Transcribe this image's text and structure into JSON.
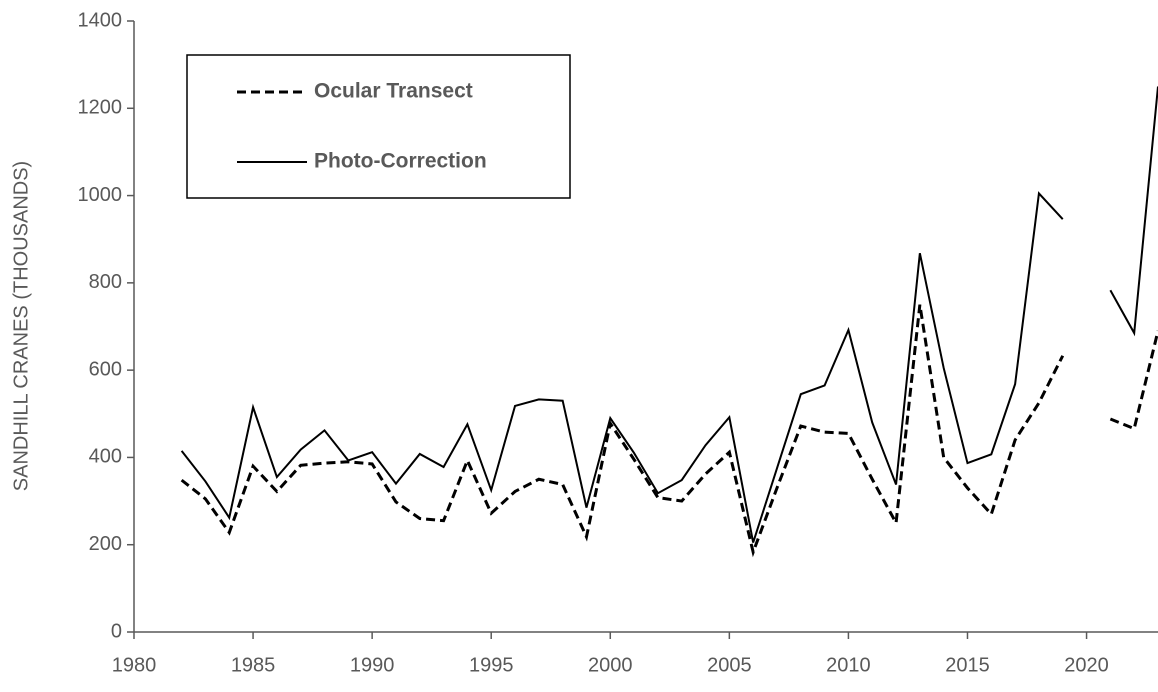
{
  "chart_data": {
    "type": "line",
    "y_label": "SANDHILL CRANES (THOUSANDS)",
    "x": [
      1982,
      1983,
      1984,
      1985,
      1986,
      1987,
      1988,
      1989,
      1990,
      1991,
      1992,
      1993,
      1994,
      1995,
      1996,
      1997,
      1998,
      1999,
      2000,
      2001,
      2002,
      2003,
      2004,
      2005,
      2006,
      2007,
      2008,
      2009,
      2010,
      2011,
      2012,
      2013,
      2014,
      2015,
      2016,
      2017,
      2018,
      2019,
      2020,
      2021,
      2022,
      2023
    ],
    "series": [
      {
        "name": "Ocular Transect",
        "color": "#000000",
        "dash": true,
        "values": [
          348,
          305,
          228,
          380,
          322,
          382,
          387,
          390,
          385,
          298,
          260,
          255,
          393,
          272,
          322,
          350,
          338,
          218,
          478,
          395,
          308,
          300,
          362,
          412,
          183,
          330,
          472,
          458,
          455,
          350,
          250,
          750,
          400,
          330,
          270,
          440,
          525,
          633,
          null,
          488,
          466,
          690
        ]
      },
      {
        "name": "Photo-Correction",
        "color": "#000000",
        "dash": false,
        "values": [
          415,
          345,
          262,
          515,
          355,
          418,
          462,
          393,
          412,
          340,
          408,
          378,
          476,
          325,
          518,
          533,
          530,
          285,
          490,
          410,
          318,
          348,
          428,
          492,
          205,
          375,
          545,
          565,
          692,
          480,
          338,
          868,
          605,
          387,
          407,
          568,
          1005,
          946,
          null,
          783,
          685,
          1250
        ]
      }
    ],
    "xlim": [
      1980,
      2023
    ],
    "xticks": [
      1980,
      1985,
      1990,
      1995,
      2000,
      2005,
      2010,
      2015,
      2020
    ],
    "ylim": [
      0,
      1400
    ],
    "yticks": [
      0,
      200,
      400,
      600,
      800,
      1000,
      1200,
      1400
    ],
    "grid": false,
    "legend": "top-left"
  }
}
